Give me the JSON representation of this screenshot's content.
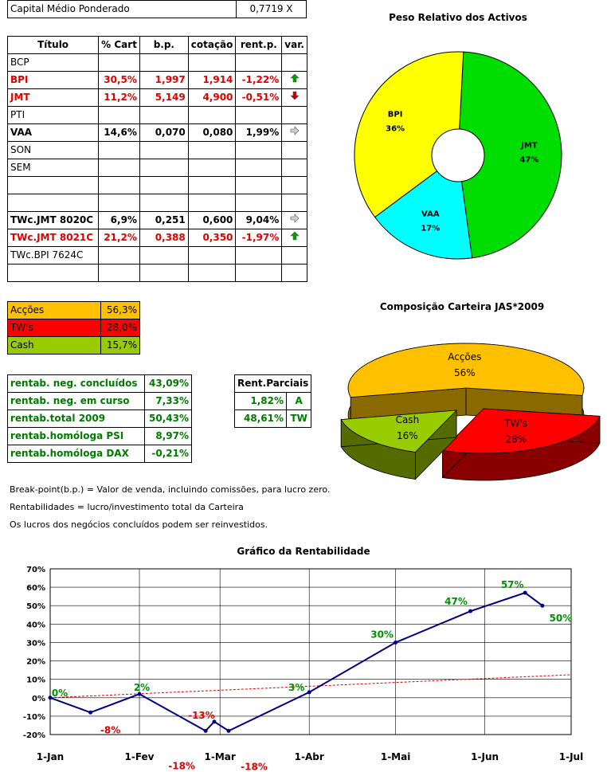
{
  "colors": {
    "red": "#e00000",
    "green": "#007a00",
    "grey": "#bdbdbd"
  },
  "capital": {
    "label": "Capital Médio Ponderado",
    "value": "0,7719 X"
  },
  "portfolio": {
    "headers": [
      "Título",
      "% Cart",
      "b.p.",
      "cotação",
      "rent.p.",
      "var."
    ],
    "rows": [
      {
        "name": "BCP",
        "pct": "",
        "bp": "",
        "cot": "",
        "rent": "",
        "var": "",
        "color": "grey"
      },
      {
        "name": "BPI",
        "pct": "30,5%",
        "bp": "1,997",
        "cot": "1,914",
        "rent": "-1,22%",
        "var": "up",
        "color": "red"
      },
      {
        "name": "JMT",
        "pct": "11,2%",
        "bp": "5,149",
        "cot": "4,900",
        "rent": "-0,51%",
        "var": "down",
        "color": "red"
      },
      {
        "name": "PTI",
        "pct": "",
        "bp": "",
        "cot": "",
        "rent": "",
        "var": "",
        "color": "grey"
      },
      {
        "name": "VAA",
        "pct": "14,6%",
        "bp": "0,070",
        "cot": "0,080",
        "rent": "1,99%",
        "var": "right",
        "color": "green"
      },
      {
        "name": "SON",
        "pct": "",
        "bp": "",
        "cot": "",
        "rent": "",
        "var": "",
        "color": "grey"
      },
      {
        "name": "SEM",
        "pct": "",
        "bp": "",
        "cot": "",
        "rent": "",
        "var": "",
        "color": "grey"
      },
      {
        "name": "",
        "pct": "",
        "bp": "",
        "cot": "",
        "rent": "",
        "var": "",
        "color": "grey"
      },
      {
        "name": "",
        "pct": "",
        "bp": "",
        "cot": "",
        "rent": "",
        "var": "",
        "color": "grey"
      },
      {
        "name": "TWc.JMT 8020C",
        "pct": "6,9%",
        "bp": "0,251",
        "cot": "0,600",
        "rent": "9,04%",
        "var": "right",
        "color": "green"
      },
      {
        "name": "TWc.JMT 8021C",
        "pct": "21,2%",
        "bp": "0,388",
        "cot": "0,350",
        "rent": "-1,97%",
        "var": "up",
        "color": "red"
      },
      {
        "name": "TWc.BPI 7624C",
        "pct": "",
        "bp": "",
        "cot": "",
        "rent": "",
        "var": "",
        "color": "grey"
      },
      {
        "name": "",
        "pct": "",
        "bp": "",
        "cot": "",
        "rent": "",
        "var": "",
        "color": "grey"
      }
    ]
  },
  "alloc": [
    {
      "label": "Acções",
      "value": "56,3%",
      "color": "#ffc000"
    },
    {
      "label": "TW's",
      "value": "28,0%",
      "color": "#ff0000"
    },
    {
      "label": "Cash",
      "value": "15,7%",
      "color": "#99cc00"
    }
  ],
  "rentab": [
    {
      "label": "rentab. neg. concluídos",
      "value": "43,09%"
    },
    {
      "label": "rentab. neg. em curso",
      "value": "7,33%"
    },
    {
      "label": "rentab.total 2009",
      "value": "50,43%"
    },
    {
      "label": "rentab.homóloga PSI",
      "value": "8,97%"
    },
    {
      "label": "rentab.homóloga DAX",
      "value": "-0,21%"
    }
  ],
  "parciais": {
    "header": "Rent.Parciais",
    "rows": [
      {
        "value": "1,82%",
        "tag": "A"
      },
      {
        "value": "48,61%",
        "tag": "TW"
      }
    ]
  },
  "notes": [
    "Break-point(b.p.) = Valor de venda, incluindo comissões, para lucro zero.",
    "Rentabilidades = lucro/investimento total da Carteira",
    "Os lucros dos negócios concluídos podem ser reinvestidos."
  ],
  "chart_data": [
    {
      "type": "pie",
      "title": "Peso Relativo dos Activos",
      "style": "doughnut",
      "slices": [
        {
          "label": "JMT",
          "pct_label": "47%",
          "value": 47,
          "color": "#00dd00"
        },
        {
          "label": "VAA",
          "pct_label": "17%",
          "value": 17,
          "color": "#00ffff"
        },
        {
          "label": "BPI",
          "pct_label": "36%",
          "value": 36,
          "color": "#ffff00"
        }
      ]
    },
    {
      "type": "pie",
      "title": "Composição Carteira JAS*2009",
      "style": "3d-exploded",
      "slices": [
        {
          "label": "Acções",
          "pct_label": "56%",
          "value": 56,
          "color": "#ffc000"
        },
        {
          "label": "TW's",
          "pct_label": "28%",
          "value": 28,
          "color": "#ff0000"
        },
        {
          "label": "Cash",
          "pct_label": "16%",
          "value": 16,
          "color": "#99cc00"
        }
      ]
    },
    {
      "type": "line",
      "title": "Gráfico da Rentabilidade",
      "x_ticks": [
        "1-Jan",
        "1-Fev",
        "1-Mar",
        "1-Abr",
        "1-Mai",
        "1-Jun",
        "1-Jul"
      ],
      "y_ticks": [
        "-20%",
        "-10%",
        "0%",
        "10%",
        "20%",
        "30%",
        "40%",
        "50%",
        "60%",
        "70%"
      ],
      "ylim": [
        -20,
        70
      ],
      "grid": true,
      "series": [
        {
          "color": "#000080",
          "points": [
            {
              "x": "1-Jan",
              "y": 0,
              "label": "0%"
            },
            {
              "x": "15-Jan",
              "y": -8,
              "label": "-8%"
            },
            {
              "x": "1-Fev",
              "y": 2,
              "label": "2%"
            },
            {
              "x": "24-Fev",
              "y": -18,
              "label": "-18%"
            },
            {
              "x": "27-Fev",
              "y": -13,
              "label": "-13%"
            },
            {
              "x": "4-Mar",
              "y": -18,
              "label": "-18%"
            },
            {
              "x": "1-Abr",
              "y": 3,
              "label": "3%"
            },
            {
              "x": "1-Mai",
              "y": 30,
              "label": "30%"
            },
            {
              "x": "27-Mai",
              "y": 47,
              "label": "47%"
            },
            {
              "x": "15-Jun",
              "y": 57,
              "label": "57%"
            },
            {
              "x": "21-Jun",
              "y": 50,
              "label": "50%"
            }
          ]
        },
        {
          "style": "dashed-trend",
          "color": "#dd0000",
          "points": [
            {
              "x": "1-Jan",
              "y": 0
            },
            {
              "x": "1-Jul",
              "y": 12.5
            }
          ]
        }
      ]
    }
  ]
}
